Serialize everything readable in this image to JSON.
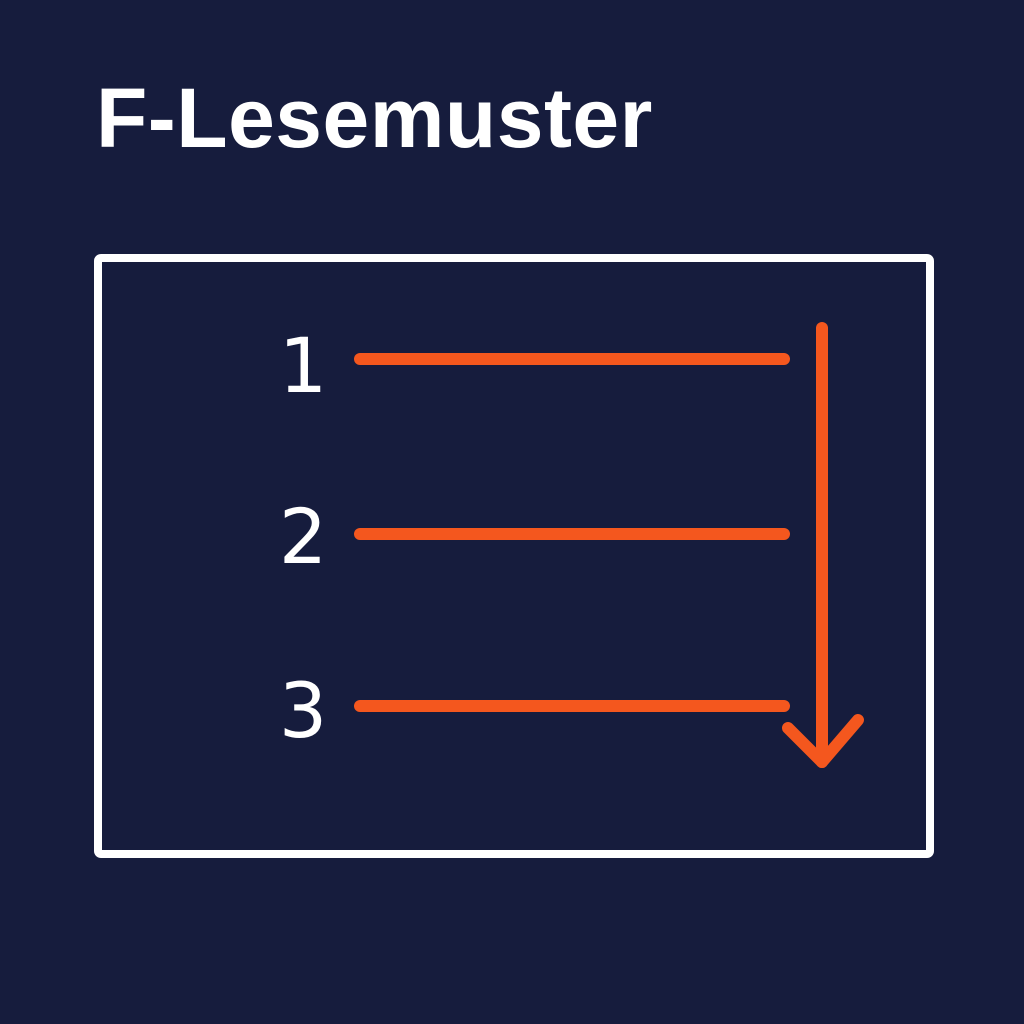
{
  "title": "F-Lesemuster",
  "colors": {
    "background": "#161c3d",
    "frame": "#ffffff",
    "accent": "#f4571e",
    "text": "#ffffff"
  },
  "lines": [
    {
      "label": "1"
    },
    {
      "label": "2"
    },
    {
      "label": "3"
    }
  ],
  "arrow": {
    "direction": "down"
  }
}
